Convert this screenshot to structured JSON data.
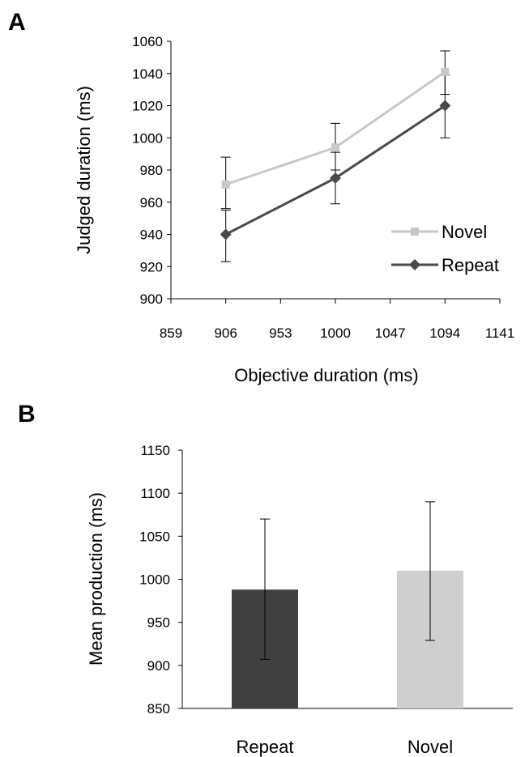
{
  "panels": [
    {
      "letter": "A"
    },
    {
      "letter": "B"
    }
  ],
  "chart_data": [
    {
      "type": "line",
      "panel": "A",
      "xlabel": "Objective duration (ms)",
      "ylabel": "Judged duration (ms)",
      "xlim": [
        859,
        1141
      ],
      "ylim": [
        900,
        1060
      ],
      "xticks": [
        859,
        906,
        953,
        1000,
        1047,
        1094,
        1141
      ],
      "yticks": [
        900,
        920,
        940,
        960,
        980,
        1000,
        1020,
        1040,
        1060
      ],
      "x": [
        906,
        1000,
        1094
      ],
      "series": [
        {
          "name": "Novel",
          "values": [
            971,
            994,
            1041
          ],
          "err_low": [
            956,
            980,
            1027
          ],
          "err_high": [
            988,
            1009,
            1054
          ],
          "color": "#c8c8c8",
          "marker": "square"
        },
        {
          "name": "Repeat",
          "values": [
            940,
            975,
            1020
          ],
          "err_low": [
            923,
            959,
            1000
          ],
          "err_high": [
            955,
            991,
            1039
          ],
          "color": "#4a4a4a",
          "marker": "diamond"
        }
      ],
      "legend": "right",
      "grid": false
    },
    {
      "type": "bar",
      "panel": "B",
      "ylabel": "Mean production (ms)",
      "categories": [
        "Repeat",
        "Novel"
      ],
      "values": [
        988,
        1010
      ],
      "err_low": [
        907,
        929
      ],
      "err_high": [
        1070,
        1090
      ],
      "colors": [
        "#404040",
        "#cfcfcf"
      ],
      "ylim": [
        850,
        1150
      ],
      "yticks": [
        850,
        900,
        950,
        1000,
        1050,
        1100,
        1150
      ],
      "grid": false
    }
  ]
}
